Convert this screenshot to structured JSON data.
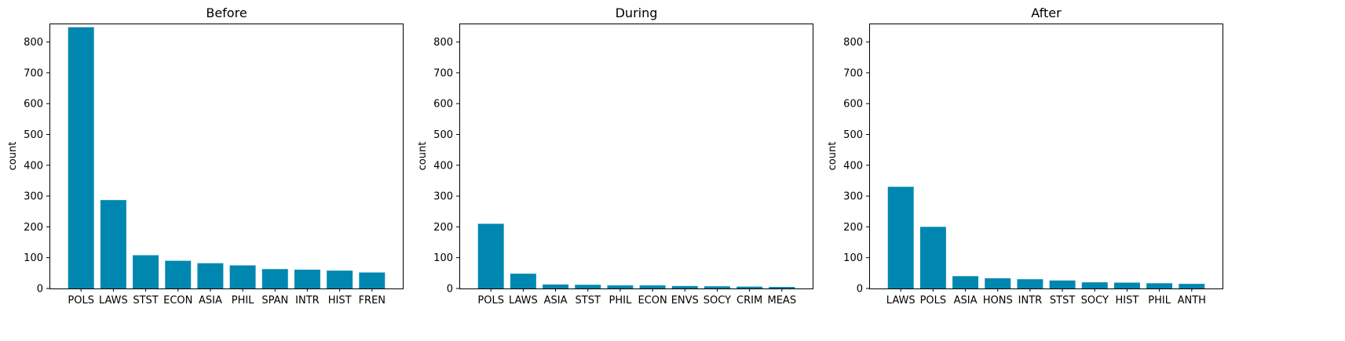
{
  "chart_data": [
    {
      "type": "bar",
      "title": "Before",
      "ylabel": "count",
      "xlabel": "",
      "ylim": [
        0,
        860
      ],
      "yticks": [
        0,
        100,
        200,
        300,
        400,
        500,
        600,
        700,
        800
      ],
      "categories": [
        "POLS",
        "LAWS",
        "STST",
        "ECON",
        "ASIA",
        "PHIL",
        "SPAN",
        "INTR",
        "HIST",
        "FREN"
      ],
      "values": [
        848,
        287,
        108,
        90,
        82,
        75,
        63,
        61,
        58,
        52
      ],
      "grid": false,
      "color": "#0087b0"
    },
    {
      "type": "bar",
      "title": "During",
      "ylabel": "count",
      "xlabel": "",
      "ylim": [
        0,
        860
      ],
      "yticks": [
        0,
        100,
        200,
        300,
        400,
        500,
        600,
        700,
        800
      ],
      "categories": [
        "POLS",
        "LAWS",
        "ASIA",
        "STST",
        "PHIL",
        "ECON",
        "ENVS",
        "SOCY",
        "CRIM",
        "MEAS"
      ],
      "values": [
        210,
        48,
        13,
        12,
        10,
        10,
        8,
        7,
        6,
        5
      ],
      "grid": false,
      "color": "#0087b0"
    },
    {
      "type": "bar",
      "title": "After",
      "ylabel": "count",
      "xlabel": "",
      "ylim": [
        0,
        860
      ],
      "yticks": [
        0,
        100,
        200,
        300,
        400,
        500,
        600,
        700,
        800
      ],
      "categories": [
        "LAWS",
        "POLS",
        "ASIA",
        "HONS",
        "INTR",
        "STST",
        "SOCY",
        "HIST",
        "PHIL",
        "ANTH"
      ],
      "values": [
        330,
        200,
        40,
        33,
        30,
        26,
        20,
        19,
        17,
        15
      ],
      "grid": false,
      "color": "#0087b0"
    }
  ]
}
